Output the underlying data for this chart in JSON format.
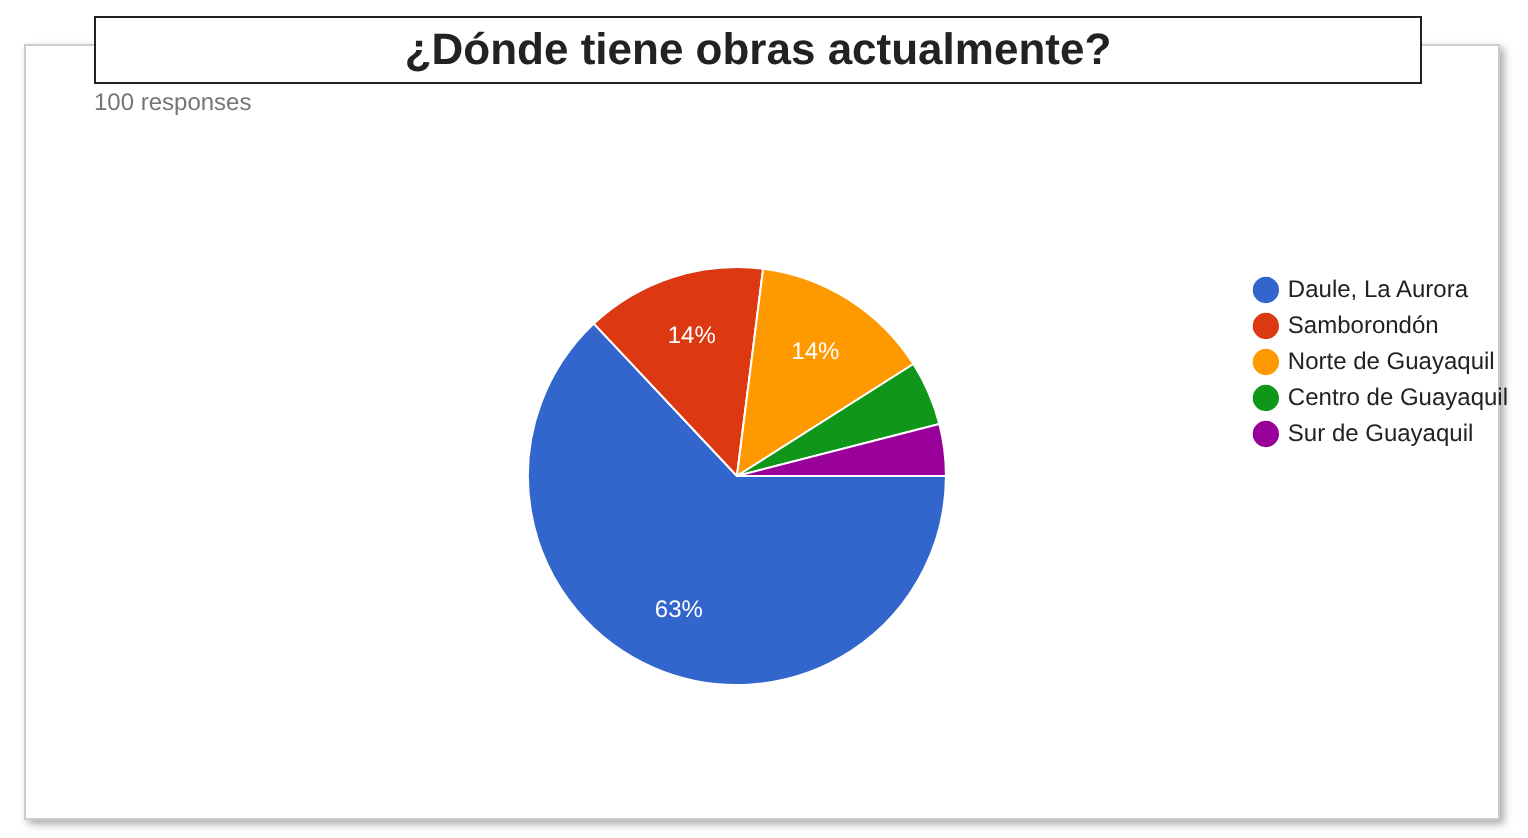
{
  "chart_data": {
    "type": "pie",
    "title": "¿Dónde tiene obras actualmente?",
    "subtitle": "100 responses",
    "categories": [
      "Daule, La Aurora",
      "Samborondón",
      "Norte de Guayaquil",
      "Centro de Guayaquil",
      "Sur de Guayaquil"
    ],
    "values": [
      63,
      14,
      14,
      5,
      4
    ],
    "colors": [
      "#3366cc",
      "#dc3912",
      "#ff9900",
      "#109618",
      "#990099"
    ],
    "value_labels": [
      "63%",
      "14%",
      "14%",
      null,
      null
    ],
    "legend": "right"
  }
}
